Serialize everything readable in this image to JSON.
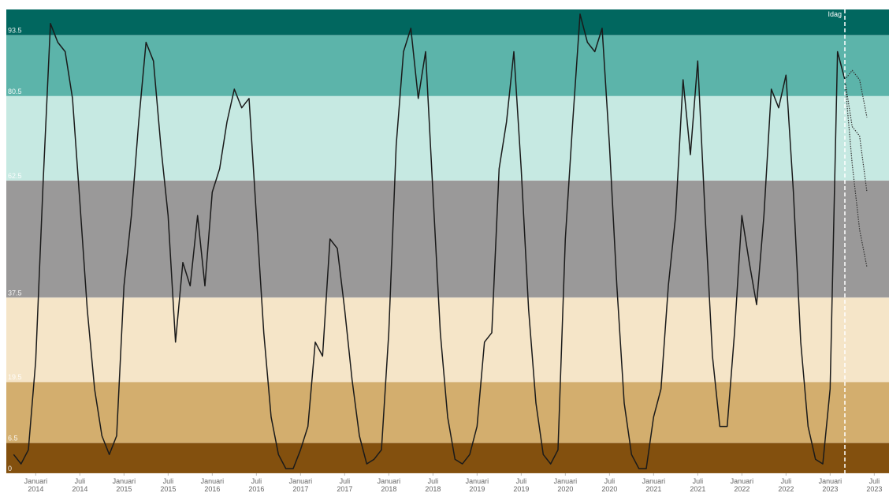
{
  "chart_data": {
    "type": "line",
    "xlim": [
      "2013-09",
      "2023-09"
    ],
    "ylim": [
      0,
      99
    ],
    "yticks": [
      0,
      6.5,
      19.5,
      37.5,
      62.5,
      80.5,
      93.5
    ],
    "xticks": [
      {
        "value": "2014-01",
        "label": [
          "Januari",
          "2014"
        ]
      },
      {
        "value": "2014-07",
        "label": [
          "Juli",
          "2014"
        ]
      },
      {
        "value": "2015-01",
        "label": [
          "Januari",
          "2015"
        ]
      },
      {
        "value": "2015-07",
        "label": [
          "Juli",
          "2015"
        ]
      },
      {
        "value": "2016-01",
        "label": [
          "Januari",
          "2016"
        ]
      },
      {
        "value": "2016-07",
        "label": [
          "Juli",
          "2016"
        ]
      },
      {
        "value": "2017-01",
        "label": [
          "Januari",
          "2017"
        ]
      },
      {
        "value": "2017-07",
        "label": [
          "Juli",
          "2017"
        ]
      },
      {
        "value": "2018-01",
        "label": [
          "Januari",
          "2018"
        ]
      },
      {
        "value": "2018-07",
        "label": [
          "Juli",
          "2018"
        ]
      },
      {
        "value": "2019-01",
        "label": [
          "Januari",
          "2019"
        ]
      },
      {
        "value": "2019-07",
        "label": [
          "Juli",
          "2019"
        ]
      },
      {
        "value": "2020-01",
        "label": [
          "Januari",
          "2020"
        ]
      },
      {
        "value": "2020-07",
        "label": [
          "Juli",
          "2020"
        ]
      },
      {
        "value": "2021-01",
        "label": [
          "Januari",
          "2021"
        ]
      },
      {
        "value": "2021-07",
        "label": [
          "Juli",
          "2021"
        ]
      },
      {
        "value": "2022-01",
        "label": [
          "Januari",
          "2022"
        ]
      },
      {
        "value": "2022-07",
        "label": [
          "Juli",
          "2022"
        ]
      },
      {
        "value": "2023-01",
        "label": [
          "Januari",
          "2023"
        ]
      },
      {
        "value": "2023-07",
        "label": [
          "Juli",
          "2023"
        ]
      }
    ],
    "bands": [
      {
        "from": 0,
        "to": 6.5,
        "color": "#83500e"
      },
      {
        "from": 6.5,
        "to": 19.5,
        "color": "#d3ae6e"
      },
      {
        "from": 19.5,
        "to": 37.5,
        "color": "#f5e5c8"
      },
      {
        "from": 37.5,
        "to": 62.5,
        "color": "#9a9999"
      },
      {
        "from": 62.5,
        "to": 80.5,
        "color": "#c6e9e2"
      },
      {
        "from": 80.5,
        "to": 93.5,
        "color": "#5cb4aa"
      },
      {
        "from": 93.5,
        "to": 99,
        "color": "#01675f"
      }
    ],
    "annotation": {
      "text": "Idag",
      "x": "2023-03"
    },
    "x": [
      "2013-10",
      "2013-11",
      "2013-12",
      "2014-01",
      "2014-02",
      "2014-03",
      "2014-04",
      "2014-05",
      "2014-06",
      "2014-07",
      "2014-08",
      "2014-09",
      "2014-10",
      "2014-11",
      "2014-12",
      "2015-01",
      "2015-02",
      "2015-03",
      "2015-04",
      "2015-05",
      "2015-06",
      "2015-07",
      "2015-08",
      "2015-09",
      "2015-10",
      "2015-11",
      "2015-12",
      "2016-01",
      "2016-02",
      "2016-03",
      "2016-04",
      "2016-05",
      "2016-06",
      "2016-07",
      "2016-08",
      "2016-09",
      "2016-10",
      "2016-11",
      "2016-12",
      "2017-01",
      "2017-02",
      "2017-03",
      "2017-04",
      "2017-05",
      "2017-06",
      "2017-07",
      "2017-08",
      "2017-09",
      "2017-10",
      "2017-11",
      "2017-12",
      "2018-01",
      "2018-02",
      "2018-03",
      "2018-04",
      "2018-05",
      "2018-06",
      "2018-07",
      "2018-08",
      "2018-09",
      "2018-10",
      "2018-11",
      "2018-12",
      "2019-01",
      "2019-02",
      "2019-03",
      "2019-04",
      "2019-05",
      "2019-06",
      "2019-07",
      "2019-08",
      "2019-09",
      "2019-10",
      "2019-11",
      "2019-12",
      "2020-01",
      "2020-02",
      "2020-03",
      "2020-04",
      "2020-05",
      "2020-06",
      "2020-07",
      "2020-08",
      "2020-09",
      "2020-10",
      "2020-11",
      "2020-12",
      "2021-01",
      "2021-02",
      "2021-03",
      "2021-04",
      "2021-05",
      "2021-06",
      "2021-07",
      "2021-08",
      "2021-09",
      "2021-10",
      "2021-11",
      "2021-12",
      "2022-01",
      "2022-02",
      "2022-03",
      "2022-04",
      "2022-05",
      "2022-06",
      "2022-07",
      "2022-08",
      "2022-09",
      "2022-10",
      "2022-11",
      "2022-12",
      "2023-01",
      "2023-02",
      "2023-03"
    ],
    "series": [
      {
        "color": "#1a1a1a",
        "line_style": "solid",
        "values": [
          4,
          2,
          5,
          24,
          62,
          96,
          92,
          90,
          80,
          58,
          35,
          18,
          8,
          4,
          8,
          40,
          55,
          75,
          92,
          88,
          70,
          55,
          28,
          45,
          40,
          55,
          40,
          60,
          65,
          75,
          82,
          78,
          80,
          55,
          30,
          12,
          4,
          1,
          1,
          5,
          10,
          28,
          25,
          50,
          48,
          35,
          20,
          8,
          2,
          3,
          5,
          30,
          70,
          90,
          95,
          80,
          90,
          60,
          30,
          12,
          3,
          2,
          4,
          10,
          28,
          30,
          65,
          75,
          90,
          65,
          35,
          15,
          4,
          2,
          5,
          50,
          75,
          98,
          92,
          90,
          95,
          70,
          40,
          15,
          4,
          1,
          1,
          12,
          18,
          40,
          55,
          84,
          68,
          88,
          55,
          25,
          10,
          10,
          30,
          55,
          45,
          36,
          55,
          82,
          78,
          85,
          60,
          28,
          10,
          3,
          2,
          18,
          90,
          84
        ]
      },
      {
        "color": "#333333",
        "line_style": "dotted",
        "x": [
          "2023-03",
          "2023-04",
          "2023-05",
          "2023-06"
        ],
        "values": [
          84,
          86,
          84,
          76
        ]
      },
      {
        "color": "#333333",
        "line_style": "dotted",
        "x": [
          "2023-03",
          "2023-04",
          "2023-05",
          "2023-06"
        ],
        "values": [
          84,
          74,
          72,
          60
        ]
      },
      {
        "color": "#333333",
        "line_style": "dotted",
        "x": [
          "2023-03",
          "2023-04",
          "2023-05",
          "2023-06"
        ],
        "values": [
          84,
          66,
          52,
          44
        ]
      }
    ]
  }
}
